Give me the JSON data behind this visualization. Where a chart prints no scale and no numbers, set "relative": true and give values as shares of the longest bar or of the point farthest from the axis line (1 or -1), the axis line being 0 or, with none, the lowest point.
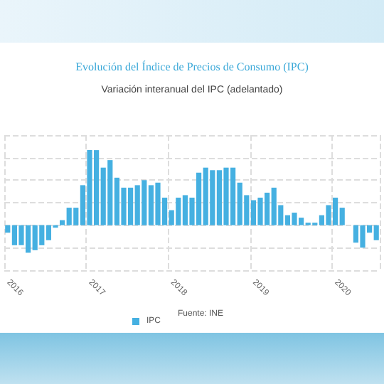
{
  "chart_data": {
    "type": "bar",
    "title": "Evolución del Índice de Precios de Consumo (IPC)",
    "subtitle": "Variación interanual del IPC (adelantado)",
    "relative": true,
    "categories": [
      "2016",
      null,
      null,
      null,
      null,
      null,
      null,
      null,
      null,
      null,
      null,
      null,
      "2017",
      null,
      null,
      null,
      null,
      null,
      null,
      null,
      null,
      null,
      null,
      null,
      "2018",
      null,
      null,
      null,
      null,
      null,
      null,
      null,
      null,
      null,
      null,
      null,
      "2019",
      null,
      null,
      null,
      null,
      null,
      null,
      null,
      null,
      null,
      null,
      null,
      "2020",
      null,
      null,
      null,
      null,
      null,
      null
    ],
    "series": [
      {
        "name": "IPC",
        "color": "#45b0e1",
        "values": [
          -0.1,
          -0.267,
          -0.267,
          -0.367,
          -0.333,
          -0.267,
          -0.2,
          -0.033,
          0.067,
          0.233,
          0.233,
          0.533,
          1,
          1,
          0.767,
          0.867,
          0.633,
          0.5,
          0.5,
          0.533,
          0.6,
          0.533,
          0.567,
          0.367,
          0.2,
          0.367,
          0.4,
          0.367,
          0.7,
          0.767,
          0.733,
          0.733,
          0.767,
          0.767,
          0.567,
          0.4,
          0.333,
          0.367,
          0.433,
          0.5,
          0.267,
          0.133,
          0.167,
          0.1,
          0.033,
          0.033,
          0.133,
          0.267,
          0.367,
          0.233,
          0,
          -0.233,
          -0.3,
          -0.1,
          -0.2
        ]
      }
    ],
    "grid": true,
    "legend": "bottom",
    "annotations": [
      "Fuente: INE"
    ]
  }
}
